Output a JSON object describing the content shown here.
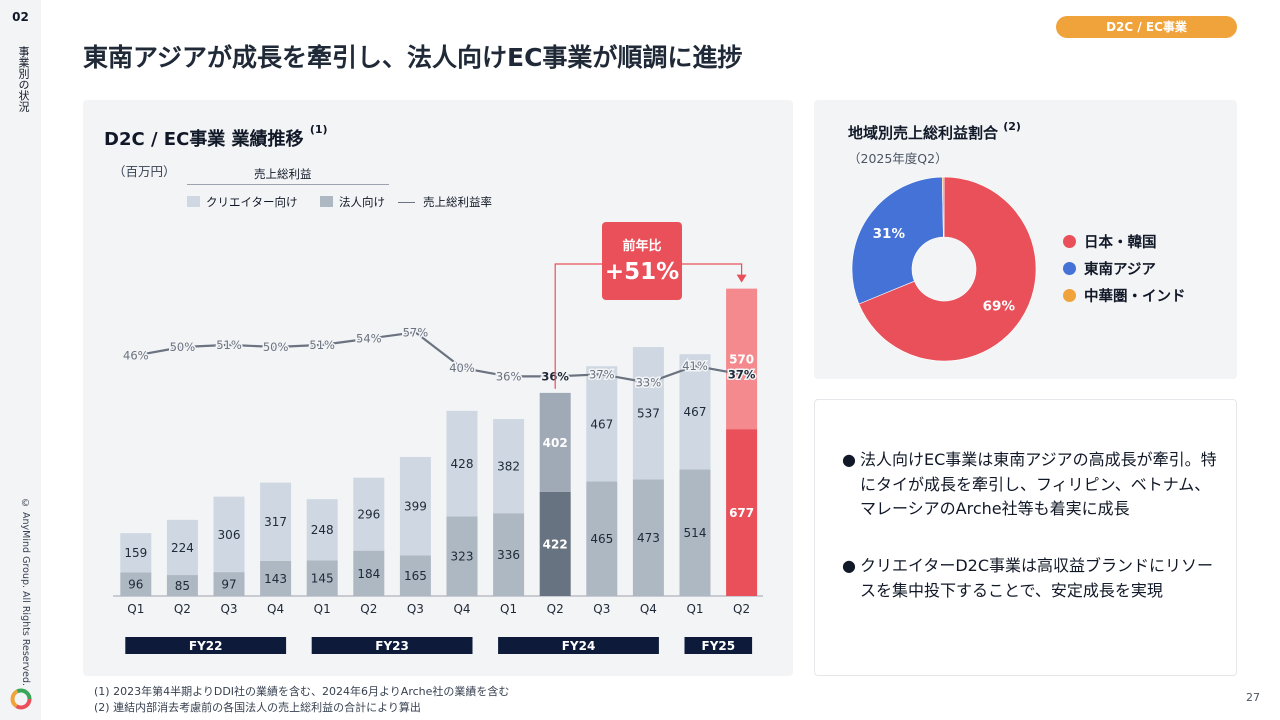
{
  "slide": {
    "number": "02",
    "section_label": "事業別の状況",
    "copyright": "© AnyMind Group. All Rights Reserved.",
    "page_number": "27",
    "tag": "D2C / EC事業",
    "title": "東南アジアが成長を牽引し、法人向けEC事業が順調に進捗"
  },
  "colors": {
    "creator": "#cfd8e2",
    "corporate": "#aeb8c3",
    "highlight_creator": "#a0aab6",
    "highlight_corporate": "#687381",
    "latest_creator": "#f58a8e",
    "latest_corporate": "#e9505a",
    "accent_red": "#e9505a",
    "accent_orange": "#f0a33a",
    "navy": "#0e1a3a",
    "japan_korea": "#e9505a",
    "southeast_asia": "#4472d6",
    "china_india": "#f0a33a"
  },
  "chart_data": [
    {
      "type": "bar",
      "title": "D2C / EC事業 業績推移",
      "title_note": "(1)",
      "unit": "（百万円）",
      "legend_heading": "売上総利益",
      "stacked": true,
      "categories": [
        "Q1",
        "Q2",
        "Q3",
        "Q4",
        "Q1",
        "Q2",
        "Q3",
        "Q4",
        "Q1",
        "Q2",
        "Q3",
        "Q4",
        "Q1",
        "Q2"
      ],
      "fiscal_years": [
        {
          "label": "FY22",
          "quarters": 4
        },
        {
          "label": "FY23",
          "quarters": 4
        },
        {
          "label": "FY24",
          "quarters": 4
        },
        {
          "label": "FY25",
          "quarters": 2
        }
      ],
      "series": [
        {
          "name": "法人向け",
          "values": [
            96,
            85,
            97,
            143,
            145,
            184,
            165,
            323,
            336,
            422,
            465,
            473,
            514,
            677
          ]
        },
        {
          "name": "クリエイター向け",
          "values": [
            159,
            224,
            306,
            317,
            248,
            296,
            399,
            428,
            382,
            402,
            467,
            537,
            467,
            570
          ]
        }
      ],
      "line": {
        "name": "売上総利益率",
        "values": [
          46,
          50,
          51,
          50,
          51,
          54,
          57,
          40,
          36,
          36,
          37,
          33,
          41,
          37
        ]
      },
      "ylim": [
        0,
        1300
      ],
      "line_range": [
        0,
        100
      ],
      "grid": false,
      "legend_position": "top-left",
      "callout": {
        "label": "前年比",
        "value": "+51%"
      }
    },
    {
      "type": "pie",
      "title": "地域別売上総利益割合",
      "title_note": "(2)",
      "subtitle": "（2025年度Q2）",
      "donut": true,
      "slices": [
        {
          "label": "日本・韓国",
          "value": 69,
          "value_label": "69%"
        },
        {
          "label": "東南アジア",
          "value": 31,
          "value_label": "31%"
        },
        {
          "label": "中華圏・インド",
          "value": 0.3,
          "value_label": ""
        }
      ],
      "legend_position": "right"
    }
  ],
  "bullets": [
    "法人向けEC事業は東南アジアの高成長が牽引。特にタイが成長を牽引し、フィリピン、ベトナム、マレーシアのArche社等も着実に成長",
    "クリエイターD2C事業は高収益ブランドにリソースを集中投下することで、安定成長を実現"
  ],
  "footnotes": [
    "(1) 2023年第4半期よりDDI社の業績を含む、2024年6月よりArche社の業績を含む",
    "(2) 連結内部消去考慮前の各国法人の売上総利益の合計により算出"
  ]
}
